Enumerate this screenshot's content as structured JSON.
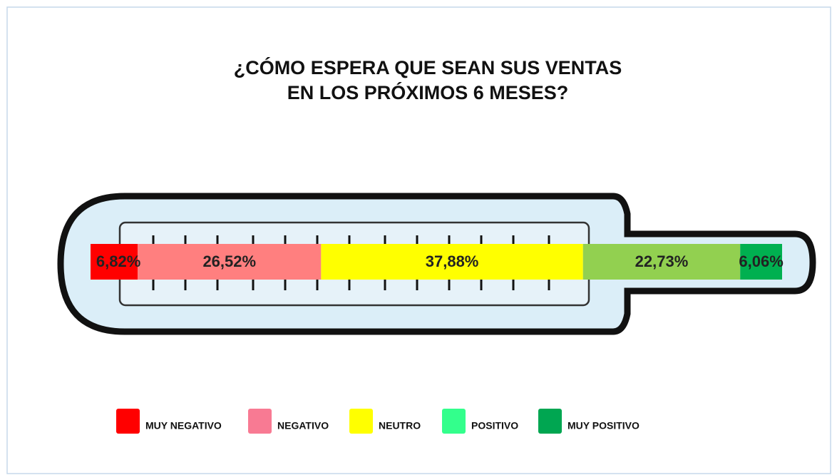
{
  "chart_data": {
    "type": "bar",
    "orientation": "horizontal",
    "stacked": true,
    "title": [
      "¿CÓMO ESPERA QUE SEAN SUS VENTAS",
      "EN LOS PRÓXIMOS 6 MESES?"
    ],
    "series": [
      {
        "name": "MUY NEGATIVO",
        "color": "#ff0000",
        "legend_color": "#ff0000",
        "values": [
          6.82
        ],
        "value_labels": [
          "6,82%"
        ]
      },
      {
        "name": "NEGATIVO",
        "color": "#ff7f7f",
        "legend_color": "#f87a93",
        "values": [
          26.52
        ],
        "value_labels": [
          "26,52%"
        ]
      },
      {
        "name": "NEUTRO",
        "color": "#ffff00",
        "legend_color": "#ffff00",
        "values": [
          37.88
        ],
        "value_labels": [
          "37,88%"
        ]
      },
      {
        "name": "POSITIVO",
        "color": "#92d050",
        "legend_color": "#33ff8c",
        "values": [
          22.73
        ],
        "value_labels": [
          "22,73%"
        ]
      },
      {
        "name": "MUY POSITIVO",
        "color": "#00b050",
        "legend_color": "#00a651",
        "values": [
          6.06
        ],
        "value_labels": [
          "6,06%"
        ]
      }
    ],
    "legend": "bottom"
  }
}
